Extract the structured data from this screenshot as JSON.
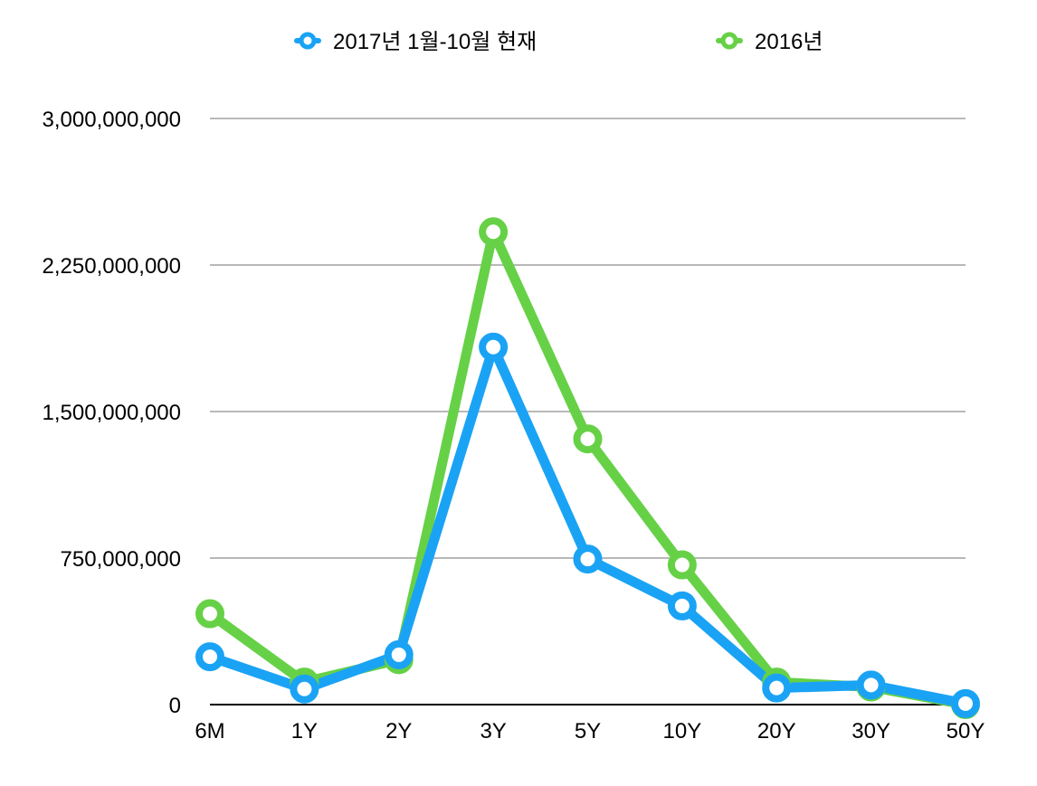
{
  "chart_data": {
    "type": "line",
    "title": "",
    "xlabel": "",
    "ylabel": "",
    "categories": [
      "6M",
      "1Y",
      "2Y",
      "3Y",
      "5Y",
      "10Y",
      "20Y",
      "30Y",
      "50Y"
    ],
    "ylim": [
      0,
      3000000000
    ],
    "yticks": [
      0,
      750000000,
      1500000000,
      2250000000,
      3000000000
    ],
    "ytick_labels": [
      "0",
      "750,000,000",
      "1,500,000,000",
      "2,250,000,000",
      "3,000,000,000"
    ],
    "grid": true,
    "legend_position": "top-center",
    "series": [
      {
        "name": "2017년 1월-10월 현재",
        "color": "#1aa3f5",
        "values": [
          245000000,
          80000000,
          255000000,
          1830000000,
          745000000,
          505000000,
          85000000,
          100000000,
          5000000
        ]
      },
      {
        "name": "2016년",
        "color": "#66d146",
        "values": [
          465000000,
          115000000,
          230000000,
          2420000000,
          1360000000,
          715000000,
          115000000,
          90000000,
          0
        ]
      }
    ]
  }
}
